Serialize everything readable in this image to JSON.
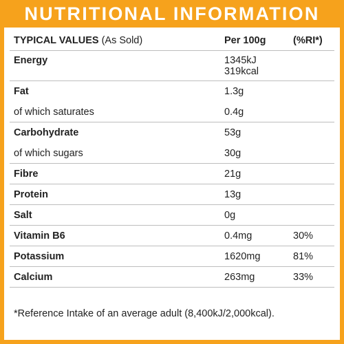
{
  "banner": {
    "title": "NUTRITIONAL INFORMATION"
  },
  "table": {
    "header": {
      "label_bold": "TYPICAL VALUES",
      "label_sub": " (As Sold)",
      "per": "Per 100g",
      "ri": "(%RI*)"
    },
    "rows": [
      {
        "name": "Energy",
        "value": "1345kJ",
        "value2": "319kcal",
        "ri": ""
      },
      {
        "name": "Fat",
        "value": "1.3g",
        "ri": ""
      },
      {
        "name": "of which saturates",
        "value": "0.4g",
        "ri": ""
      },
      {
        "name": "Carbohydrate",
        "value": "53g",
        "ri": ""
      },
      {
        "name": "of which sugars",
        "value": "30g",
        "ri": ""
      },
      {
        "name": "Fibre",
        "value": "21g",
        "ri": ""
      },
      {
        "name": "Protein",
        "value": "13g",
        "ri": ""
      },
      {
        "name": "Salt",
        "value": "0g",
        "ri": ""
      },
      {
        "name": "Vitamin B6",
        "value": "0.4mg",
        "ri": "30%"
      },
      {
        "name": "Potassium",
        "value": "1620mg",
        "ri": "81%"
      },
      {
        "name": "Calcium",
        "value": "263mg",
        "ri": "33%"
      }
    ]
  },
  "footnote": "*Reference Intake of an average adult (8,400kJ/2,000kcal).",
  "colors": {
    "accent": "#f6a21c",
    "text": "#222222",
    "rule": "#bdbdbd"
  }
}
